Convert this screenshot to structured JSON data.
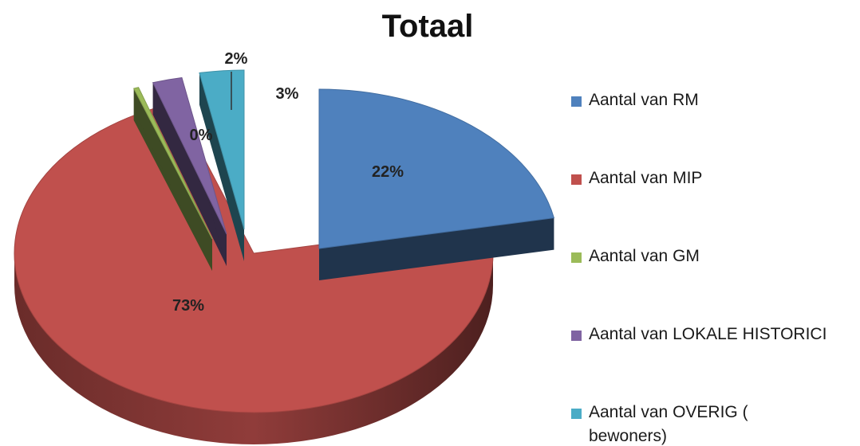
{
  "chart_data": {
    "type": "pie",
    "title": "Totaal",
    "slices": [
      {
        "label": "Aantal van RM",
        "label_lines": [
          "Aantal van RM"
        ],
        "value": 22,
        "display": "22%",
        "color": "#4F81BD"
      },
      {
        "label": "Aantal van MIP",
        "label_lines": [
          "Aantal van MIP"
        ],
        "value": 73,
        "display": "73%",
        "color": "#C0504D"
      },
      {
        "label": "Aantal van GM",
        "label_lines": [
          "Aantal van GM"
        ],
        "value": 0,
        "display": "0%",
        "color": "#9BBB59"
      },
      {
        "label": "Aantal van LOKALE HISTORICI",
        "label_lines": [
          "Aantal van LOKALE HISTORICI"
        ],
        "value": 2,
        "display": "2%",
        "color": "#8064A2"
      },
      {
        "label": "Aantal van OVERIG ( bewoners)",
        "label_lines": [
          "Aantal van OVERIG (",
          "bewoners)"
        ],
        "value": 3,
        "display": "3%",
        "color": "#4BACC6"
      }
    ],
    "style": "3d-exploded",
    "legend": "right"
  }
}
